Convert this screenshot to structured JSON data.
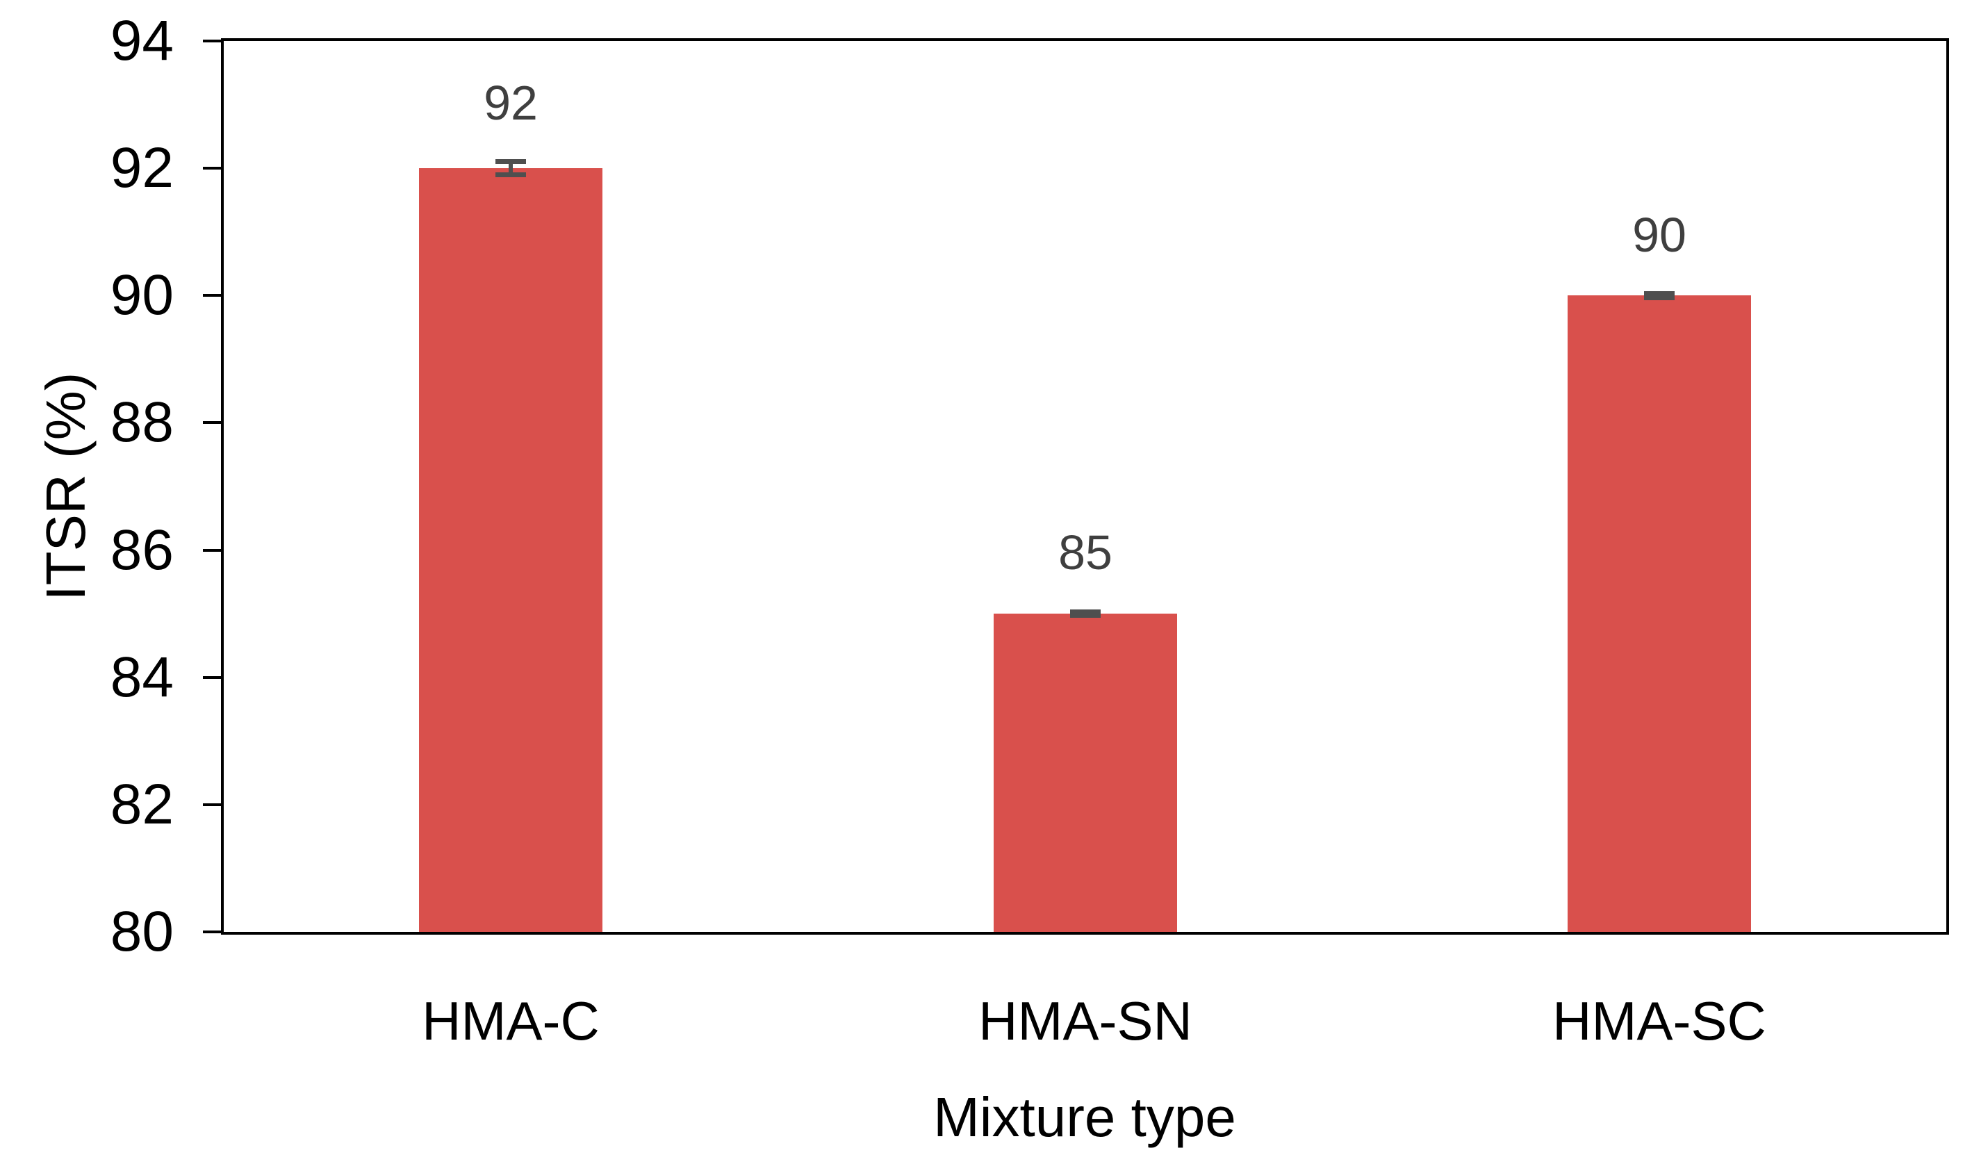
{
  "chart_data": {
    "type": "bar",
    "categories": [
      "HMA-C",
      "HMA-SN",
      "HMA-SC"
    ],
    "values": [
      92,
      85,
      90
    ],
    "data_labels": [
      "92",
      "85",
      "90"
    ],
    "errors": [
      0.1,
      0.03,
      0.03
    ],
    "xlabel": "Mixture type",
    "ylabel": "ITSR (%)",
    "ylim": [
      80,
      94
    ],
    "yticks": [
      80,
      82,
      84,
      86,
      88,
      90,
      92,
      94
    ],
    "grid": false,
    "legend": false,
    "colors": {
      "bar_fill": "#D9504C",
      "error_bar": "#4F4F4F",
      "data_label": "#3F3F3F",
      "axis": "#000000",
      "background": "#FFFFFF"
    }
  }
}
